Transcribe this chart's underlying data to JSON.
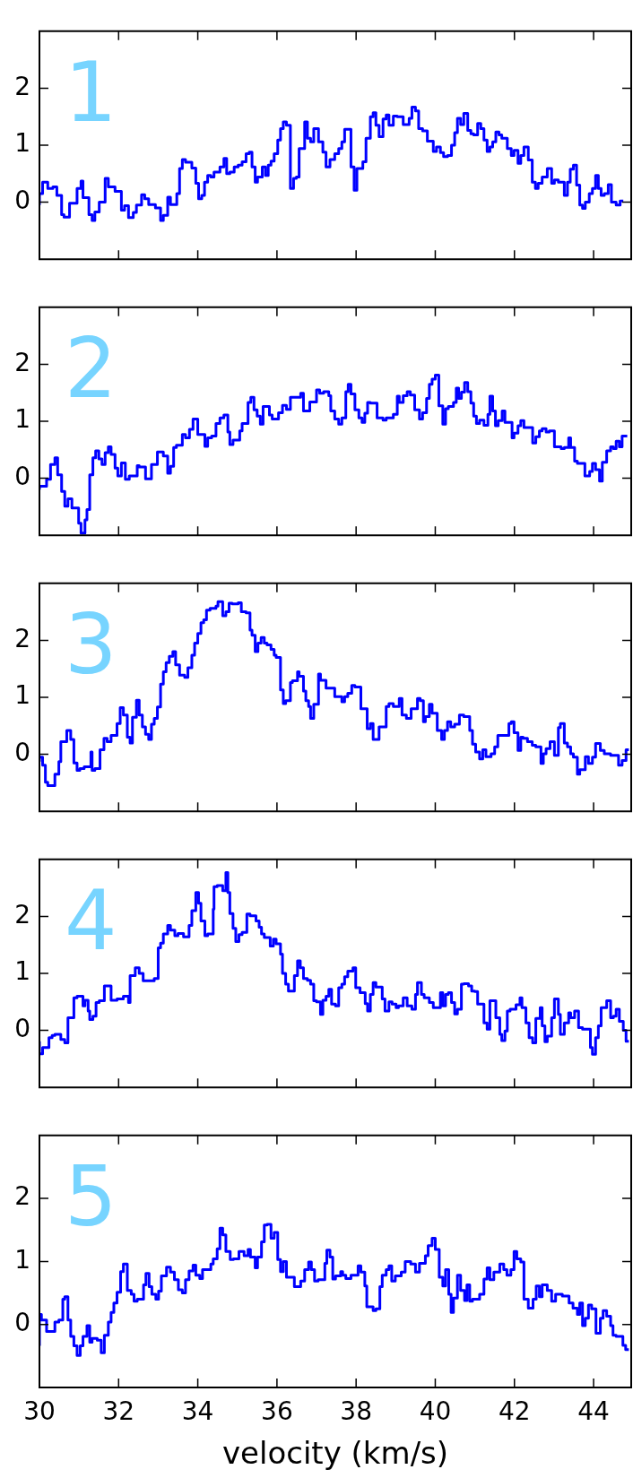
{
  "chart_data": [
    {
      "type": "step",
      "annotations": [
        "1"
      ],
      "color": "#0000ff",
      "xlim": [
        30,
        44.95
      ],
      "ylim": [
        -1,
        3
      ],
      "xticks": [
        30,
        32,
        34,
        36,
        38,
        40,
        42,
        44
      ],
      "yticks": [
        0,
        1,
        2
      ],
      "tick_labels": "y",
      "x": [
        30.0,
        30.08,
        30.21,
        30.34,
        30.44,
        30.56,
        30.62,
        30.76,
        30.95,
        31.05,
        31.1,
        31.25,
        31.33,
        31.4,
        31.51,
        31.66,
        31.74,
        31.91,
        32.07,
        32.15,
        32.25,
        32.37,
        32.45,
        32.58,
        32.66,
        32.76,
        32.93,
        33.06,
        33.13,
        33.24,
        33.31,
        33.47,
        33.54,
        33.61,
        33.69,
        33.85,
        33.95,
        34.02,
        34.1,
        34.17,
        34.25,
        34.33,
        34.41,
        34.56,
        34.66,
        34.73,
        34.81,
        34.92,
        35.02,
        35.12,
        35.22,
        35.3,
        35.37,
        35.45,
        35.51,
        35.63,
        35.71,
        35.78,
        35.85,
        35.93,
        36.02,
        36.09,
        36.16,
        36.24,
        36.34,
        36.42,
        36.49,
        36.56,
        36.7,
        36.77,
        36.85,
        36.93,
        37.05,
        37.16,
        37.24,
        37.34,
        37.46,
        37.56,
        37.64,
        37.71,
        37.87,
        37.95,
        38.02,
        38.17,
        38.25,
        38.36,
        38.43,
        38.5,
        38.58,
        38.68,
        38.76,
        38.83,
        38.94,
        39.04,
        39.19,
        39.34,
        39.41,
        39.5,
        39.58,
        39.68,
        39.8,
        39.95,
        40.03,
        40.13,
        40.21,
        40.31,
        40.41,
        40.49,
        40.56,
        40.64,
        40.72,
        40.82,
        40.9,
        40.97,
        41.07,
        41.15,
        41.23,
        41.31,
        41.38,
        41.45,
        41.53,
        41.61,
        41.68,
        41.82,
        41.92,
        41.99,
        42.09,
        42.16,
        42.24,
        42.35,
        42.45,
        42.53,
        42.6,
        42.7,
        42.83,
        42.94,
        43.01,
        43.11,
        43.26,
        43.34,
        43.41,
        43.49,
        43.57,
        43.65,
        43.72,
        43.79,
        43.89,
        43.97,
        44.05,
        44.12,
        44.19,
        44.27,
        44.37,
        44.45,
        44.57,
        44.67,
        44.75
      ],
      "values": [
        -0.05,
        0.15,
        0.35,
        0.24,
        0.27,
        0.12,
        -0.22,
        -0.26,
        -0.02,
        0.24,
        0.37,
        0.08,
        -0.22,
        -0.32,
        -0.17,
        0,
        0.42,
        0.27,
        0.19,
        -0.14,
        -0.06,
        -0.27,
        -0.18,
        -0.05,
        0.13,
        0.06,
        -0.04,
        -0.1,
        -0.32,
        -0.23,
        0.09,
        -0.04,
        0.15,
        0.59,
        0.75,
        0.7,
        0.6,
        0.33,
        0.06,
        0.12,
        0.35,
        0.47,
        0.44,
        0.53,
        0.62,
        0.77,
        0.5,
        0.53,
        0.62,
        0.65,
        0.71,
        0.85,
        0.88,
        0.62,
        0.35,
        0.44,
        0.62,
        0.47,
        0.65,
        0.72,
        0.85,
        1.09,
        1.29,
        1.41,
        1.35,
        0.24,
        0.42,
        0.44,
        0.94,
        1.41,
        1.12,
        1.06,
        1.29,
        1.06,
        0.88,
        0.62,
        0.75,
        0.85,
        0.94,
        1.06,
        1.28,
        0.62,
        0.21,
        0.59,
        0.71,
        1.12,
        1.5,
        1.57,
        1.35,
        1.15,
        1.46,
        1.53,
        1.35,
        1.51,
        1.5,
        1.36,
        1.47,
        1.67,
        1.6,
        1.29,
        1.25,
        1.07,
        0.89,
        0.97,
        0.87,
        0.8,
        0.82,
        1.0,
        1.22,
        1.47,
        1.36,
        1.56,
        1.26,
        1.2,
        1.18,
        1.38,
        1.29,
        1.09,
        0.89,
        0.97,
        1.06,
        1.23,
        1.18,
        1.12,
        0.94,
        0.82,
        0.91,
        0.68,
        0.82,
        0.97,
        0.74,
        0.35,
        0.24,
        0.33,
        0.44,
        0.59,
        0.33,
        0.39,
        0.35,
        0.12,
        0.35,
        0.58,
        0.65,
        0.3,
        -0.05,
        -0.11,
        0,
        0.15,
        0.24,
        0.47,
        0.24,
        0.12,
        0.15,
        0.31,
        0,
        -0.05,
        0.02
      ]
    },
    {
      "type": "step",
      "annotations": [
        "2"
      ],
      "color": "#0000ff",
      "xlim": [
        30,
        44.95
      ],
      "ylim": [
        -1,
        3
      ],
      "xticks": [
        30,
        32,
        34,
        36,
        38,
        40,
        42,
        44
      ],
      "yticks": [
        0,
        1,
        2
      ],
      "tick_labels": "y",
      "x": [
        30.0,
        30.18,
        30.28,
        30.39,
        30.46,
        30.56,
        30.64,
        30.72,
        30.82,
        30.99,
        31.05,
        31.15,
        31.2,
        31.27,
        31.35,
        31.42,
        31.5,
        31.58,
        31.66,
        31.74,
        31.81,
        31.91,
        31.98,
        32.07,
        32.17,
        32.27,
        32.47,
        32.52,
        32.68,
        32.83,
        32.98,
        33.13,
        33.24,
        33.31,
        33.39,
        33.46,
        33.61,
        33.69,
        33.79,
        33.88,
        34.0,
        34.18,
        34.25,
        34.35,
        34.46,
        34.56,
        34.66,
        34.76,
        34.81,
        34.89,
        35.06,
        35.12,
        35.27,
        35.34,
        35.42,
        35.5,
        35.58,
        35.65,
        35.81,
        35.88,
        36.04,
        36.14,
        36.24,
        36.34,
        36.6,
        36.67,
        36.83,
        37.0,
        37.08,
        37.18,
        37.31,
        37.36,
        37.46,
        37.56,
        37.64,
        37.74,
        37.8,
        37.87,
        37.97,
        38.07,
        38.15,
        38.22,
        38.29,
        38.36,
        38.53,
        38.68,
        38.76,
        38.94,
        39.04,
        39.09,
        39.19,
        39.29,
        39.37,
        39.48,
        39.6,
        39.68,
        39.78,
        39.85,
        39.92,
        40.0,
        40.09,
        40.19,
        40.26,
        40.33,
        40.46,
        40.53,
        40.59,
        40.66,
        40.74,
        40.82,
        40.9,
        40.97,
        41.04,
        41.12,
        41.23,
        41.33,
        41.38,
        41.45,
        41.52,
        41.59,
        41.69,
        41.76,
        41.94,
        41.99,
        42.09,
        42.16,
        42.24,
        42.46,
        42.54,
        42.63,
        42.7,
        42.8,
        42.88,
        43.01,
        43.18,
        43.26,
        43.37,
        43.42,
        43.52,
        43.59,
        43.78,
        43.9,
        43.97,
        44.05,
        44.15,
        44.22,
        44.33,
        44.43,
        44.5,
        44.57,
        44.65,
        44.72,
        44.85
      ],
      "values": [
        -0.2,
        -0.14,
        -0.02,
        0.24,
        0.36,
        0.06,
        -0.23,
        -0.49,
        -0.36,
        -0.52,
        -0.79,
        -0.96,
        -0.73,
        -0.55,
        0.06,
        0.36,
        0.48,
        0.34,
        0.24,
        0.45,
        0.55,
        0.42,
        0.18,
        0.04,
        0.27,
        -0.02,
        0.04,
        0.22,
        0.2,
        -0.01,
        0.24,
        0.46,
        0.39,
        0.09,
        0.21,
        0.54,
        0.58,
        0.77,
        0.71,
        0.86,
        1.04,
        0.77,
        0.56,
        0.71,
        0.74,
        0.96,
        1.06,
        1.11,
        0.81,
        0.59,
        0.67,
        0.83,
        0.96,
        1.33,
        1.42,
        1.2,
        1.09,
        0.95,
        1.26,
        1.11,
        1.04,
        1.15,
        1.28,
        1.21,
        1.42,
        1.49,
        1.18,
        1.34,
        1.55,
        1.49,
        1.52,
        1.45,
        1.18,
        1.04,
        0.95,
        1.06,
        1.52,
        1.65,
        1.48,
        1.2,
        1.06,
        0.98,
        1.14,
        1.33,
        1.32,
        1.06,
        1.02,
        1.06,
        1.12,
        1.44,
        1.33,
        1.45,
        1.52,
        1.46,
        1.2,
        1.04,
        1.15,
        1.4,
        1.65,
        1.74,
        1.81,
        1.27,
        0.95,
        1.22,
        1.26,
        1.33,
        1.58,
        1.4,
        1.51,
        1.68,
        1.52,
        1.32,
        1.09,
        0.96,
        1.02,
        0.93,
        1.12,
        1.44,
        1.18,
        0.92,
        1.01,
        1.18,
        0.98,
        0.71,
        0.79,
        0.92,
        1.01,
        0.89,
        0.62,
        0.73,
        0.83,
        0.87,
        0.81,
        0.83,
        0.55,
        0.52,
        0.54,
        0.71,
        0.54,
        0.3,
        0.26,
        0.04,
        0.12,
        0.26,
        0.15,
        -0.05,
        0.28,
        0.48,
        0.55,
        0.52,
        0.65,
        0.55,
        0.74
      ]
    },
    {
      "type": "step",
      "annotations": [
        "3"
      ],
      "color": "#0000ff",
      "xlim": [
        30,
        44.95
      ],
      "ylim": [
        -1,
        3
      ],
      "xticks": [
        30,
        32,
        34,
        36,
        38,
        40,
        42,
        44
      ],
      "yticks": [
        0,
        1,
        2
      ],
      "tick_labels": "y",
      "x": [
        30.0,
        30.08,
        30.15,
        30.21,
        30.39,
        30.49,
        30.54,
        30.69,
        30.79,
        30.87,
        30.95,
        31.02,
        31.13,
        31.3,
        31.33,
        31.4,
        31.53,
        31.63,
        31.71,
        31.81,
        31.96,
        32.04,
        32.12,
        32.22,
        32.29,
        32.35,
        32.45,
        32.52,
        32.6,
        32.68,
        32.76,
        32.83,
        32.9,
        32.98,
        33.06,
        33.13,
        33.2,
        33.28,
        33.37,
        33.44,
        33.54,
        33.67,
        33.75,
        33.85,
        33.92,
        34.0,
        34.08,
        34.15,
        34.22,
        34.31,
        34.46,
        34.51,
        34.63,
        34.71,
        34.79,
        34.87,
        35.02,
        35.1,
        35.22,
        35.32,
        35.37,
        35.45,
        35.52,
        35.6,
        35.68,
        35.75,
        35.85,
        35.93,
        35.98,
        36.09,
        36.16,
        36.22,
        36.34,
        36.39,
        36.52,
        36.56,
        36.67,
        36.73,
        36.8,
        36.85,
        36.93,
        37.05,
        37.1,
        37.24,
        37.46,
        37.64,
        37.71,
        37.79,
        37.89,
        37.97,
        38.12,
        38.28,
        38.36,
        38.43,
        38.58,
        38.76,
        38.83,
        38.94,
        39.09,
        39.16,
        39.27,
        39.39,
        39.55,
        39.62,
        39.7,
        39.75,
        39.85,
        39.92,
        40.05,
        40.16,
        40.23,
        40.31,
        40.39,
        40.49,
        40.61,
        40.72,
        40.87,
        40.94,
        41.02,
        41.12,
        41.2,
        41.28,
        41.41,
        41.5,
        41.58,
        41.65,
        41.86,
        41.92,
        41.99,
        42.09,
        42.16,
        42.22,
        42.33,
        42.45,
        42.54,
        42.67,
        42.73,
        42.8,
        42.9,
        43.01,
        43.11,
        43.16,
        43.26,
        43.34,
        43.42,
        43.49,
        43.59,
        43.65,
        43.79,
        43.87,
        43.97,
        44.05,
        44.17,
        44.27,
        44.43,
        44.63,
        44.72,
        44.82,
        44.89
      ],
      "values": [
        -0.13,
        -0.05,
        -0.19,
        -0.49,
        -0.55,
        -0.35,
        -0.13,
        0.22,
        0.42,
        0.26,
        -0.15,
        -0.28,
        -0.25,
        -0.22,
        0.04,
        -0.28,
        -0.25,
        0.08,
        0.28,
        0.22,
        0.33,
        0.54,
        0.82,
        0.69,
        0.3,
        0.2,
        0.65,
        0.95,
        0.69,
        0.48,
        0.35,
        0.26,
        0.53,
        0.63,
        0.83,
        1.23,
        1.45,
        1.61,
        1.72,
        1.8,
        1.57,
        1.39,
        1.35,
        1.52,
        1.74,
        1.95,
        2.12,
        2.31,
        2.36,
        2.53,
        2.56,
        2.6,
        2.68,
        2.43,
        2.5,
        2.65,
        2.64,
        2.66,
        2.5,
        2.48,
        2.18,
        2.09,
        1.8,
        1.95,
        2.05,
        1.95,
        1.92,
        1.84,
        1.74,
        1.7,
        1.13,
        0.89,
        0.94,
        1.26,
        1.29,
        1.45,
        1.37,
        1.11,
        0.94,
        0.84,
        0.63,
        0.88,
        1.41,
        1.3,
        1.16,
        1.01,
        0.92,
        1.01,
        1.07,
        1.21,
        1.18,
        0.8,
        0.45,
        0.54,
        0.26,
        0.48,
        0.84,
        0.89,
        0.84,
        0.98,
        0.69,
        0.63,
        0.8,
        0.98,
        0.94,
        0.57,
        0.66,
        0.88,
        0.72,
        0.42,
        0.26,
        0.42,
        0.57,
        0.48,
        0.53,
        0.69,
        0.66,
        0.42,
        0.18,
        0.04,
        -0.08,
        0.08,
        -0.04,
        0.01,
        0.13,
        0.33,
        0.33,
        0.54,
        0.57,
        0.38,
        0.07,
        0.3,
        0.28,
        0.22,
        0.16,
        0.13,
        -0.16,
        0.01,
        0.1,
        0.22,
        -0.02,
        0.47,
        0.54,
        0.2,
        0.13,
        0.01,
        -0.05,
        -0.35,
        -0.27,
        -0.04,
        -0.16,
        -0.05,
        0.19,
        0.07,
        0.01,
        -0.02,
        -0.19,
        -0.11,
        0.08
      ]
    },
    {
      "type": "step",
      "annotations": [
        "4"
      ],
      "color": "#0000ff",
      "xlim": [
        30,
        44.95
      ],
      "ylim": [
        -1,
        3
      ],
      "xticks": [
        30,
        32,
        34,
        36,
        38,
        40,
        42,
        44
      ],
      "yticks": [
        0,
        1,
        2
      ],
      "tick_labels": "y",
      "x": [
        30.0,
        30.08,
        30.24,
        30.32,
        30.39,
        30.54,
        30.64,
        30.72,
        30.87,
        30.95,
        31.1,
        31.15,
        31.23,
        31.27,
        31.35,
        31.43,
        31.51,
        31.64,
        31.81,
        31.96,
        32.12,
        32.25,
        32.29,
        32.42,
        32.52,
        32.62,
        32.9,
        33.0,
        33.06,
        33.13,
        33.24,
        33.31,
        33.42,
        33.5,
        33.64,
        33.78,
        33.85,
        33.95,
        34.02,
        34.08,
        34.18,
        34.25,
        34.39,
        34.41,
        34.49,
        34.63,
        34.71,
        34.76,
        34.81,
        34.89,
        34.96,
        35.04,
        35.12,
        35.24,
        35.32,
        35.47,
        35.55,
        35.61,
        35.68,
        35.83,
        35.91,
        35.98,
        36.09,
        36.14,
        36.22,
        36.29,
        36.44,
        36.52,
        36.59,
        36.67,
        36.77,
        36.85,
        36.93,
        37.0,
        37.1,
        37.16,
        37.24,
        37.31,
        37.38,
        37.48,
        37.56,
        37.64,
        37.71,
        37.79,
        37.92,
        37.99,
        38.1,
        38.23,
        38.29,
        38.36,
        38.43,
        38.5,
        38.66,
        38.73,
        38.83,
        38.91,
        39.01,
        39.07,
        39.19,
        39.29,
        39.41,
        39.5,
        39.55,
        39.65,
        39.72,
        39.85,
        39.95,
        40.0,
        40.13,
        40.19,
        40.26,
        40.33,
        40.41,
        40.49,
        40.56,
        40.66,
        40.72,
        40.84,
        40.92,
        41.0,
        41.07,
        41.23,
        41.31,
        41.38,
        41.45,
        41.53,
        41.63,
        41.68,
        41.76,
        41.82,
        41.89,
        42.04,
        42.14,
        42.19,
        42.29,
        42.37,
        42.46,
        42.54,
        42.65,
        42.7,
        42.77,
        42.83,
        42.94,
        43.01,
        43.11,
        43.16,
        43.26,
        43.37,
        43.42,
        43.52,
        43.62,
        43.72,
        43.92,
        43.97,
        44.05,
        44.12,
        44.19,
        44.33,
        44.43,
        44.5,
        44.57,
        44.65,
        44.75,
        44.82,
        44.89
      ],
      "values": [
        -0.19,
        -0.41,
        -0.3,
        -0.13,
        -0.09,
        -0.07,
        -0.16,
        -0.22,
        0.22,
        0.57,
        0.6,
        0.43,
        0.53,
        0.34,
        0.19,
        0.25,
        0.49,
        0.52,
        0.78,
        0.53,
        0.55,
        0.6,
        0.49,
        0.96,
        1.1,
        1.0,
        0.87,
        0.91,
        1.45,
        1.53,
        1.69,
        1.84,
        1.76,
        1.66,
        1.7,
        1.64,
        1.84,
        2.1,
        2.42,
        2.23,
        1.92,
        1.66,
        1.69,
        2.13,
        2.52,
        2.54,
        2.45,
        2.77,
        2.42,
        2.05,
        1.79,
        1.56,
        1.68,
        1.72,
        2.04,
        2.01,
        1.92,
        1.81,
        1.69,
        1.63,
        1.48,
        1.6,
        1.52,
        1.34,
        1.0,
        0.81,
        0.69,
        0.96,
        1.22,
        1.1,
        0.91,
        0.88,
        0.81,
        0.52,
        0.5,
        0.28,
        0.53,
        0.6,
        0.72,
        0.46,
        0.43,
        0.75,
        0.81,
        0.94,
        1.04,
        1.1,
        0.75,
        0.66,
        0.47,
        0.34,
        0.63,
        0.84,
        0.76,
        0.55,
        0.34,
        0.5,
        0.46,
        0.4,
        0.43,
        0.57,
        0.43,
        0.37,
        0.63,
        0.84,
        0.63,
        0.57,
        0.49,
        0.4,
        0.4,
        0.66,
        0.43,
        0.63,
        0.66,
        0.49,
        0.29,
        0.37,
        0.81,
        0.82,
        0.78,
        0.69,
        0.68,
        0.46,
        0.13,
        0.02,
        0.52,
        0.52,
        0.22,
        -0.07,
        -0.18,
        -0.01,
        0.34,
        0.37,
        0.45,
        0.57,
        0.4,
        0.13,
        -0.13,
        -0.22,
        0.21,
        0.4,
        0.08,
        -0.2,
        -0.1,
        0.22,
        0.55,
        0.28,
        -0.07,
        0.13,
        0.31,
        0.22,
        0.34,
        0.05,
        0.02,
        -0.3,
        -0.42,
        -0.13,
        0.08,
        0.4,
        0.52,
        0.22,
        0.25,
        0.37,
        0.16,
        0.0,
        -0.19
      ]
    },
    {
      "type": "step",
      "annotations": [
        "5"
      ],
      "color": "#0000ff",
      "xlim": [
        30,
        44.95
      ],
      "ylim": [
        -1,
        3
      ],
      "xticks": [
        30,
        32,
        34,
        36,
        38,
        40,
        42,
        44
      ],
      "yticks": [
        0,
        1,
        2
      ],
      "xlabel": "velocity (km/s)",
      "x": [
        30.0,
        30.05,
        30.18,
        30.39,
        30.49,
        30.59,
        30.64,
        30.72,
        30.79,
        30.87,
        30.95,
        31.03,
        31.1,
        31.2,
        31.27,
        31.33,
        31.46,
        31.56,
        31.64,
        31.74,
        31.81,
        31.88,
        31.96,
        32.05,
        32.12,
        32.22,
        32.32,
        32.39,
        32.47,
        32.63,
        32.69,
        32.77,
        32.84,
        32.94,
        33.01,
        33.08,
        33.21,
        33.31,
        33.41,
        33.51,
        33.61,
        33.69,
        33.78,
        33.88,
        33.95,
        34.05,
        34.12,
        34.2,
        34.33,
        34.39,
        34.49,
        34.56,
        34.63,
        34.71,
        34.82,
        34.9,
        35.04,
        35.17,
        35.27,
        35.33,
        35.45,
        35.51,
        35.61,
        35.68,
        35.75,
        35.85,
        35.93,
        36.02,
        36.09,
        36.16,
        36.24,
        36.44,
        36.6,
        36.7,
        36.8,
        36.87,
        36.95,
        37.04,
        37.21,
        37.26,
        37.34,
        37.41,
        37.48,
        37.61,
        37.66,
        37.74,
        37.87,
        38.05,
        38.12,
        38.22,
        38.27,
        38.43,
        38.5,
        38.6,
        38.66,
        38.76,
        38.83,
        38.9,
        38.99,
        39.14,
        39.24,
        39.38,
        39.5,
        39.6,
        39.75,
        39.82,
        39.92,
        40.0,
        40.1,
        40.19,
        40.26,
        40.34,
        40.4,
        40.46,
        40.56,
        40.64,
        40.74,
        40.8,
        40.87,
        40.94,
        41.12,
        41.23,
        41.31,
        41.38,
        41.48,
        41.63,
        41.73,
        41.81,
        41.91,
        41.99,
        42.06,
        42.16,
        42.24,
        42.35,
        42.47,
        42.55,
        42.63,
        42.7,
        42.83,
        42.94,
        43.04,
        43.21,
        43.38,
        43.48,
        43.59,
        43.65,
        43.72,
        43.79,
        43.87,
        43.95,
        44.06,
        44.17,
        44.24,
        44.33,
        44.43,
        44.49,
        44.57,
        44.74,
        44.81,
        44.89
      ],
      "values": [
        -0.34,
        0.16,
        0.07,
        -0.11,
        0.04,
        0.07,
        0.4,
        0.44,
        0.07,
        -0.19,
        -0.34,
        -0.49,
        -0.34,
        -0.19,
        -0.02,
        -0.28,
        -0.22,
        -0.25,
        -0.45,
        -0.17,
        0.04,
        0.19,
        0.34,
        0.51,
        0.84,
        0.96,
        0.54,
        0.48,
        0.37,
        0.4,
        0.63,
        0.81,
        0.6,
        0.48,
        0.4,
        0.53,
        0.77,
        0.91,
        0.83,
        0.71,
        0.55,
        0.5,
        0.71,
        0.85,
        0.94,
        0.78,
        0.73,
        0.87,
        0.87,
        0.96,
        1.04,
        1.2,
        1.53,
        1.42,
        1.16,
        1.03,
        1.04,
        1.16,
        1.09,
        1.19,
        1.07,
        0.9,
        1.07,
        1.31,
        1.58,
        1.59,
        1.37,
        1.46,
        1.03,
        0.84,
        1.0,
        0.75,
        0.6,
        0.69,
        0.87,
        0.99,
        0.87,
        0.69,
        0.71,
        0.97,
        1.18,
        1.07,
        0.72,
        0.77,
        0.84,
        0.78,
        0.73,
        0.78,
        0.93,
        0.83,
        0.61,
        0.28,
        0.22,
        0.25,
        0.6,
        0.78,
        0.87,
        0.93,
        0.69,
        0.77,
        0.83,
        1.0,
        0.96,
        0.83,
        0.97,
        1.09,
        1.25,
        1.37,
        1.19,
        0.75,
        0.61,
        0.87,
        0.48,
        0.19,
        0.42,
        0.78,
        0.54,
        0.38,
        0.63,
        0.37,
        0.4,
        0.48,
        0.72,
        0.9,
        0.71,
        0.83,
        0.96,
        0.87,
        0.78,
        0.87,
        1.16,
        1.04,
        0.99,
        0.4,
        0.26,
        0.4,
        0.61,
        0.44,
        0.63,
        0.54,
        0.37,
        0.48,
        0.45,
        0.34,
        0.26,
        0.16,
        0.34,
        -0.02,
        0.1,
        0.31,
        0.25,
        -0.14,
        0.1,
        0.22,
        0.13,
        -0.02,
        -0.17,
        -0.19,
        -0.33,
        -0.4
      ]
    }
  ]
}
